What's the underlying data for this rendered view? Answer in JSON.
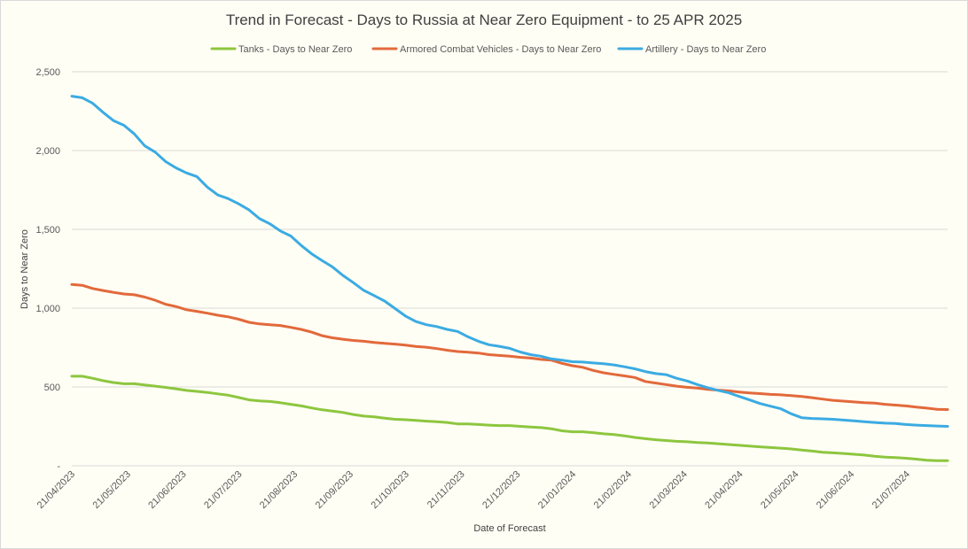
{
  "chart_data": {
    "type": "line",
    "title": "Trend in Forecast - Days to Russia at Near Zero Equipment - to 25 APR 2025",
    "xlabel": "Date of Forecast",
    "ylabel": "Days to Near Zero",
    "ylim": [
      0,
      2500
    ],
    "yticks": [
      0,
      500,
      1000,
      1500,
      2000,
      2500
    ],
    "ytick_labels": [
      "-",
      "500",
      "1,000",
      "1,500",
      "2,000",
      "2,500"
    ],
    "xtick_labels": [
      "21/04/2023",
      "21/05/2023",
      "21/06/2023",
      "21/07/2023",
      "21/08/2023",
      "21/09/2023",
      "21/10/2023",
      "21/11/2023",
      "21/12/2023",
      "21/01/2024",
      "21/02/2024",
      "21/03/2024",
      "21/04/2024",
      "21/05/2024",
      "21/06/2024",
      "21/07/2024"
    ],
    "legend_position": "top",
    "grid": true,
    "series": [
      {
        "name": "Tanks - Days to Near Zero",
        "color": "#8dc63f",
        "values": [
          568,
          568,
          555,
          540,
          528,
          520,
          520,
          513,
          505,
          497,
          488,
          478,
          472,
          465,
          456,
          448,
          433,
          418,
          412,
          408,
          400,
          390,
          380,
          367,
          355,
          347,
          338,
          325,
          315,
          310,
          302,
          295,
          292,
          288,
          283,
          279,
          275,
          266,
          266,
          262,
          258,
          255,
          255,
          250,
          246,
          242,
          235,
          222,
          216,
          216,
          210,
          203,
          198,
          190,
          180,
          172,
          165,
          160,
          155,
          152,
          148,
          145,
          140,
          135,
          130,
          125,
          120,
          116,
          112,
          107,
          100,
          93,
          86,
          82,
          78,
          73,
          68,
          60,
          55,
          52,
          48,
          42,
          35,
          32,
          32
        ]
      },
      {
        "name": "Armored Combat Vehicles - Days to Near Zero",
        "color": "#e2693b",
        "values": [
          1150,
          1145,
          1125,
          1112,
          1100,
          1090,
          1085,
          1070,
          1050,
          1025,
          1010,
          990,
          980,
          968,
          955,
          945,
          930,
          910,
          900,
          895,
          890,
          878,
          865,
          848,
          825,
          812,
          803,
          795,
          790,
          782,
          777,
          772,
          765,
          757,
          752,
          743,
          733,
          725,
          720,
          715,
          705,
          700,
          695,
          688,
          683,
          675,
          670,
          650,
          635,
          625,
          605,
          590,
          580,
          570,
          560,
          535,
          525,
          515,
          505,
          498,
          493,
          485,
          480,
          475,
          468,
          462,
          458,
          453,
          450,
          445,
          440,
          432,
          423,
          415,
          410,
          405,
          400,
          397,
          390,
          385,
          380,
          372,
          366,
          358,
          357
        ]
      },
      {
        "name": "Artillery - Days to Near Zero",
        "color": "#3babe3",
        "values": [
          2345,
          2335,
          2300,
          2242,
          2190,
          2160,
          2105,
          2030,
          1990,
          1930,
          1890,
          1858,
          1835,
          1768,
          1718,
          1695,
          1662,
          1623,
          1568,
          1535,
          1490,
          1458,
          1398,
          1345,
          1302,
          1262,
          1208,
          1162,
          1113,
          1080,
          1045,
          998,
          950,
          915,
          895,
          883,
          865,
          852,
          818,
          790,
          768,
          758,
          745,
          722,
          705,
          695,
          678,
          670,
          660,
          658,
          652,
          648,
          640,
          628,
          615,
          598,
          585,
          578,
          555,
          538,
          515,
          495,
          478,
          463,
          440,
          418,
          395,
          378,
          362,
          330,
          305,
          300,
          298,
          295,
          290,
          285,
          280,
          275,
          270,
          268,
          262,
          258,
          255,
          252,
          250
        ]
      }
    ]
  }
}
